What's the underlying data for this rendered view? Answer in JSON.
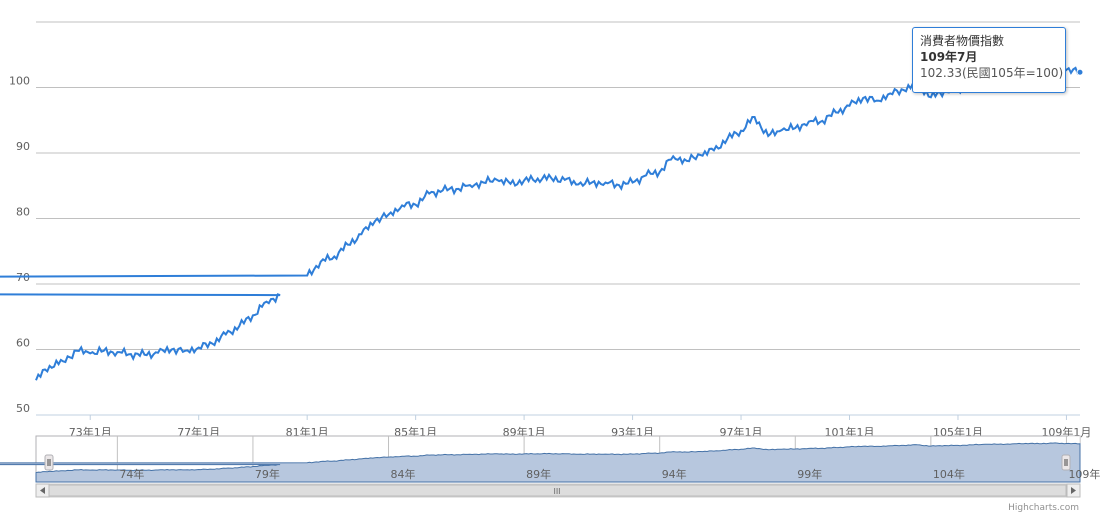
{
  "chart_data": {
    "type": "line",
    "series": [
      {
        "name": "消費者物價指數",
        "color": "#2f7ed8",
        "points": [
          [
            "71年1月",
            55.3
          ],
          [
            "71年7月",
            57.5
          ],
          [
            "72年1月",
            58.2
          ],
          [
            "72年7月",
            59.8
          ],
          [
            "73年1月",
            59.4
          ],
          [
            "73年7月",
            59.8
          ],
          [
            "74年1月",
            59.6
          ],
          [
            "74年7月",
            59.3
          ],
          [
            "75年1月",
            59.2
          ],
          [
            "75年7月",
            59.5
          ],
          [
            "76年1月",
            60.0
          ],
          [
            "76年7月",
            59.8
          ],
          [
            "77年1月",
            60.3
          ],
          [
            "77年7月",
            60.9
          ],
          [
            "78年1月",
            62.3
          ],
          [
            "78年7月",
            63.6
          ],
          [
            "79年1月",
            65.2
          ],
          [
            "79年7月",
            67.3
          ],
          [
            "80年1月",
            68.3
          ],
          [
            "80years7月",
            69.6
          ],
          [
            "81年1月",
            71.3
          ],
          [
            "81年7月",
            73.4
          ],
          [
            "82年1月",
            74.2
          ],
          [
            "82年7月",
            76.0
          ],
          [
            "83年1月",
            77.6
          ],
          [
            "83年7月",
            79.6
          ],
          [
            "84年1月",
            80.6
          ],
          [
            "84年7月",
            82.0
          ],
          [
            "85年1月",
            82.1
          ],
          [
            "85年7月",
            83.8
          ],
          [
            "86年1月",
            84.3
          ],
          [
            "86年7月",
            84.5
          ],
          [
            "87年1月",
            85.1
          ],
          [
            "87年7月",
            85.5
          ],
          [
            "88年1月",
            85.9
          ],
          [
            "88年7月",
            85.3
          ],
          [
            "89年1月",
            85.8
          ],
          [
            "89年7月",
            86.1
          ],
          [
            "90年1月",
            86.2
          ],
          [
            "90年7月",
            85.9
          ],
          [
            "91年1月",
            85.2
          ],
          [
            "91年7月",
            85.5
          ],
          [
            "92年1月",
            85.5
          ],
          [
            "92年7月",
            85.1
          ],
          [
            "93年1月",
            85.5
          ],
          [
            "93年7月",
            86.6
          ],
          [
            "94年1月",
            87.1
          ],
          [
            "94年7月",
            89.5
          ],
          [
            "95年1月",
            88.8
          ],
          [
            "95年7月",
            89.7
          ],
          [
            "96年1月",
            90.4
          ],
          [
            "96年7月",
            92.2
          ],
          [
            "97年1月",
            93.4
          ],
          [
            "97年7月",
            95.5
          ],
          [
            "98年1月",
            92.6
          ],
          [
            "98年7月",
            93.5
          ],
          [
            "99年1月",
            93.8
          ],
          [
            "99年7月",
            94.8
          ],
          [
            "100年1月",
            94.9
          ],
          [
            "100年7月",
            96.2
          ],
          [
            "101年1月",
            97.2
          ],
          [
            "101年7月",
            98.4
          ],
          [
            "102年1月",
            98.0
          ],
          [
            "102年7月",
            99.1
          ],
          [
            "103年1月",
            99.6
          ],
          [
            "103年7月",
            100.6
          ],
          [
            "104年1月",
            98.5
          ],
          [
            "104年7月",
            99.5
          ],
          [
            "105年1月",
            99.6
          ],
          [
            "105年7月",
            100.5
          ],
          [
            "106年1月",
            101.4
          ],
          [
            "106年7月",
            101.5
          ],
          [
            "107年1月",
            102.1
          ],
          [
            "107年7月",
            102.9
          ],
          [
            "108年1月",
            102.5
          ],
          [
            "108年7月",
            103.4
          ],
          [
            "109年1月",
            102.7
          ],
          [
            "109年7月",
            102.33
          ]
        ]
      }
    ],
    "y_axis": {
      "min": 50,
      "max": 110,
      "ticks": [
        "50",
        "60",
        "70",
        "80",
        "90",
        "100"
      ]
    },
    "x_axis": {
      "ticks": [
        "73年1月",
        "77年1月",
        "81年1月",
        "85年1月",
        "89年1月",
        "93年1月",
        "97年1月",
        "101年1月",
        "105年1月",
        "109年1月"
      ]
    },
    "navigator": {
      "ticks": [
        "74年",
        "79年",
        "84年",
        "89年",
        "94年",
        "99年",
        "104年",
        "109年"
      ]
    },
    "grid": true
  },
  "tooltip": {
    "title": "消費者物價指數",
    "date": "109年7月",
    "value": "102.33(民國105年=100)"
  },
  "scrollbar": {
    "grip": "III"
  },
  "credits": "Highcharts.com"
}
